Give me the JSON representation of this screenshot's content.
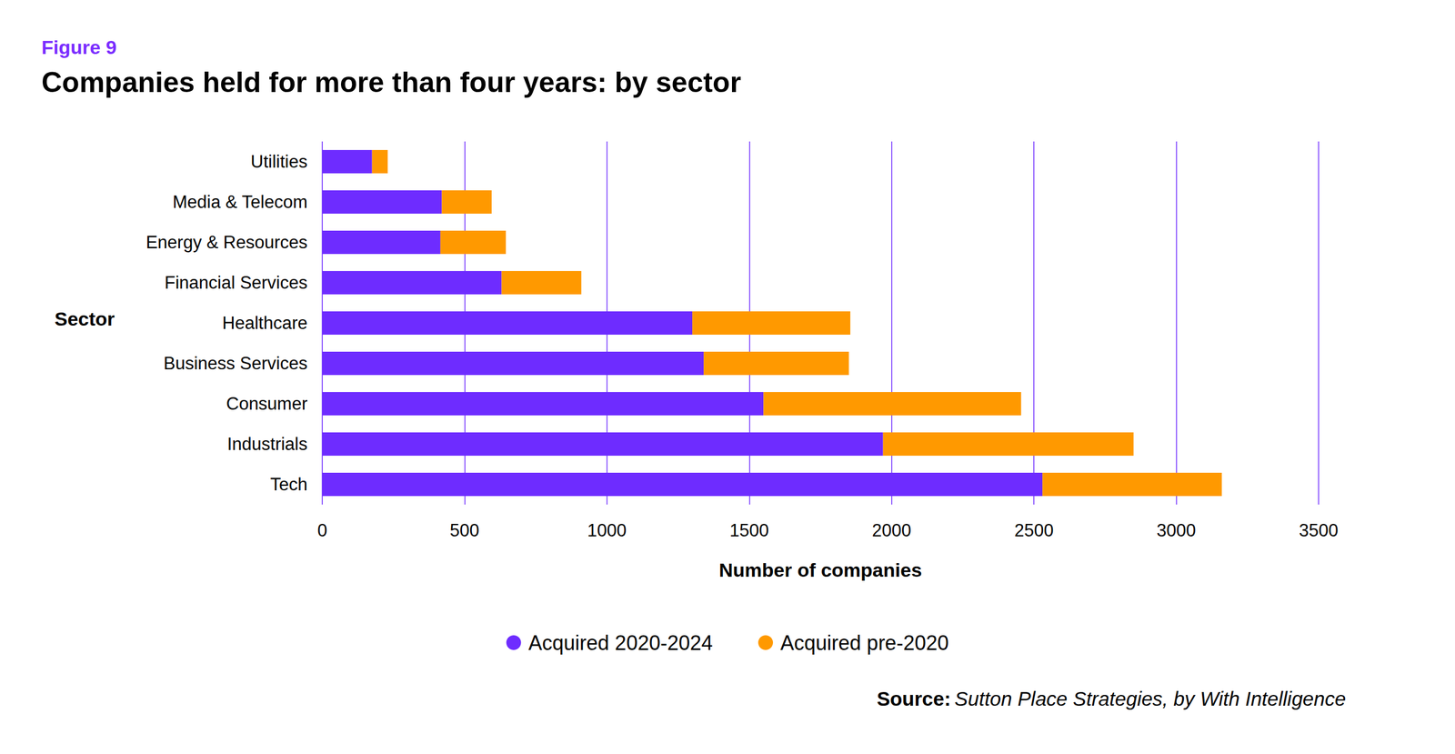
{
  "chart_data": {
    "type": "bar",
    "figure_label": "Figure 9",
    "title": "Companies held for more than four years: by sector",
    "x_label": "Number of companies",
    "y_label": "Sector",
    "source_label": "Source:",
    "source": "Sutton Place Strategies, by With Intelligence",
    "orientation": "horizontal",
    "stacked": true,
    "grid": true,
    "legend": "bottom",
    "categories": [
      "Utilities",
      "Media & Telecom",
      "Energy & Resources",
      "Financial Services",
      "Healthcare",
      "Business Services",
      "Consumer",
      "Industrials",
      "Tech"
    ],
    "series": [
      {
        "name": "Acquired 2020-2024",
        "color": "#6e2cff",
        "values": [
          175,
          420,
          415,
          630,
          1300,
          1340,
          1550,
          1970,
          2530
        ]
      },
      {
        "name": "Acquired pre-2020",
        "color": "#ff9900",
        "values": [
          55,
          175,
          230,
          280,
          555,
          510,
          905,
          880,
          630
        ]
      }
    ],
    "xlim": [
      0,
      3500
    ],
    "xticks": [
      0,
      500,
      1000,
      1500,
      2000,
      2500,
      3000,
      3500
    ]
  }
}
